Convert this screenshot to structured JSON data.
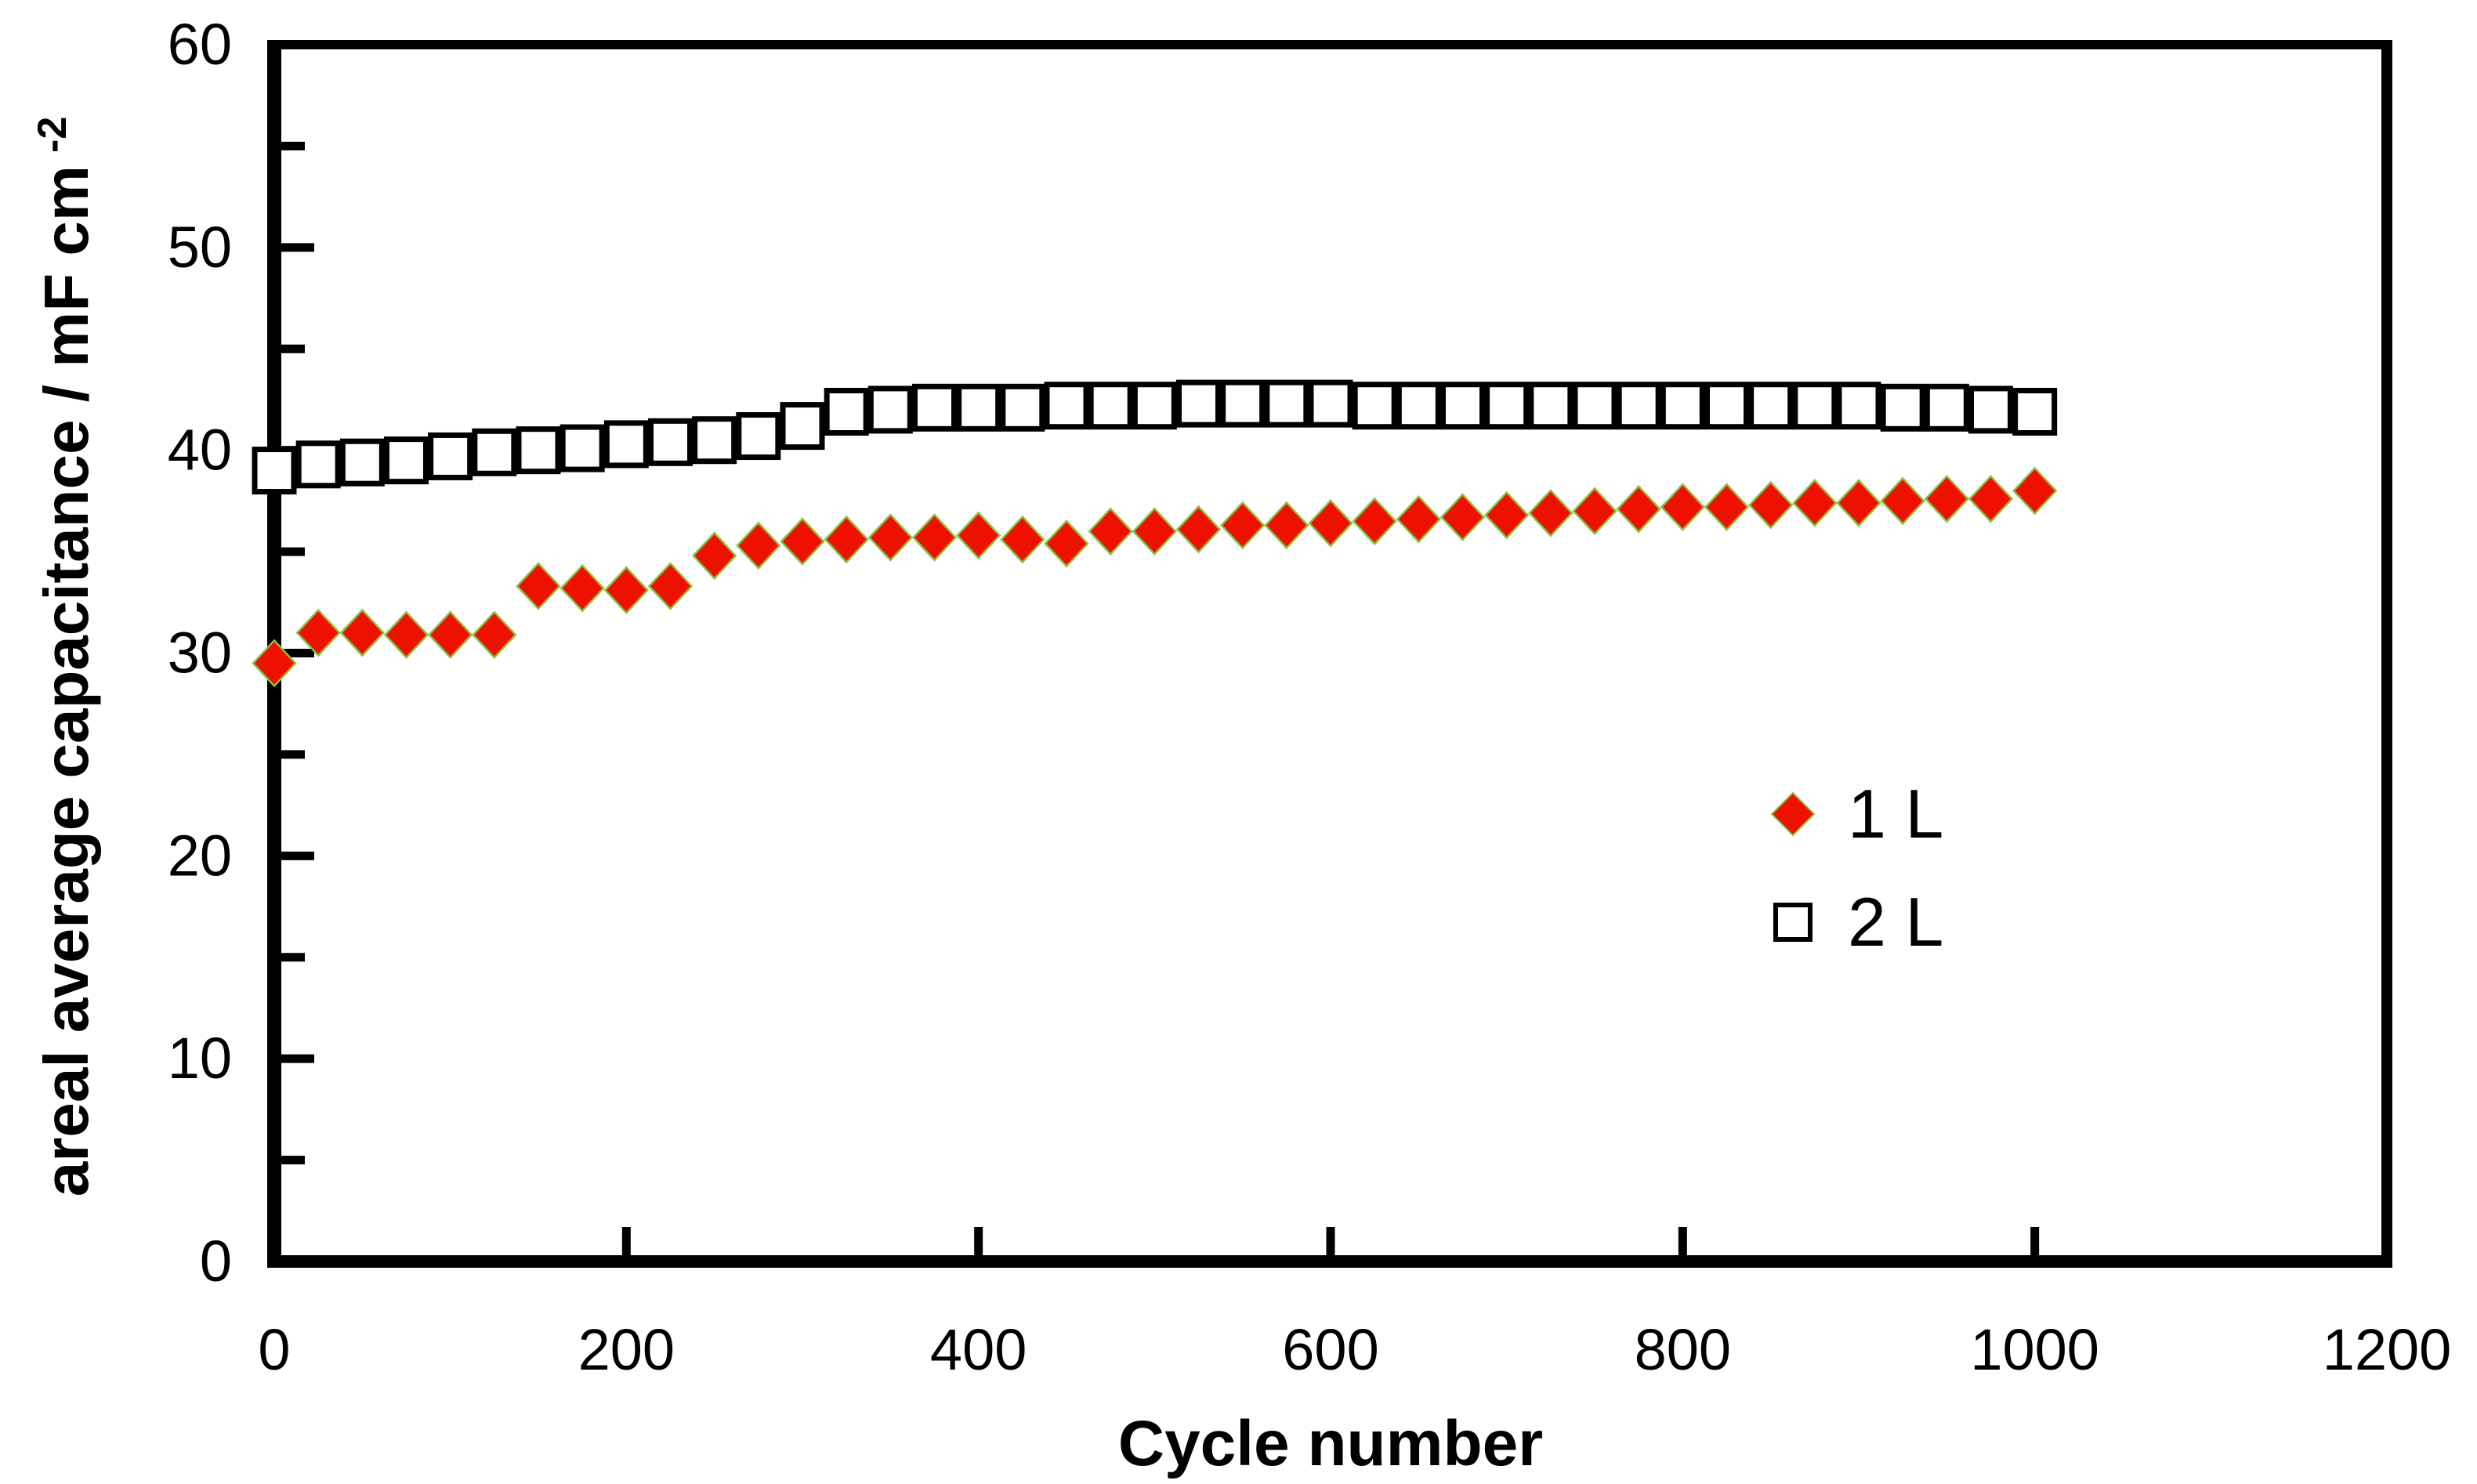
{
  "figure": {
    "background": "#ffffff",
    "axis_color": "#000000",
    "xlabel": "Cycle number",
    "ylabel_text": "areal average capacitance / mF cm",
    "ylabel_sup": "-2"
  },
  "chart_data": {
    "type": "scatter",
    "title": "",
    "xlabel": "Cycle number",
    "ylabel": "areal average capacitance / mF cm⁻²",
    "xlim": [
      0,
      1200
    ],
    "ylim": [
      0,
      60
    ],
    "x_ticks": [
      0,
      200,
      400,
      600,
      800,
      1000,
      1200
    ],
    "y_ticks": [
      0,
      10,
      20,
      30,
      40,
      50,
      60
    ],
    "y_minor_tick_step": 5,
    "grid": false,
    "legend_position": "inside-right-middle",
    "x": [
      0,
      25,
      50,
      75,
      100,
      125,
      150,
      175,
      200,
      225,
      250,
      275,
      300,
      325,
      350,
      375,
      400,
      425,
      450,
      475,
      500,
      525,
      550,
      575,
      600,
      625,
      650,
      675,
      700,
      725,
      750,
      775,
      800,
      825,
      850,
      875,
      900,
      925,
      950,
      975,
      1000
    ],
    "series": [
      {
        "name": "1 L",
        "marker": "diamond",
        "color": "#ee1000",
        "edge_color": "#8cbf42",
        "values": [
          29.5,
          31.0,
          31.0,
          30.9,
          30.9,
          30.9,
          33.3,
          33.2,
          33.1,
          33.3,
          34.8,
          35.3,
          35.5,
          35.6,
          35.7,
          35.7,
          35.8,
          35.6,
          35.4,
          36.0,
          36.0,
          36.1,
          36.3,
          36.3,
          36.4,
          36.5,
          36.6,
          36.7,
          36.8,
          36.9,
          37.0,
          37.1,
          37.2,
          37.2,
          37.3,
          37.4,
          37.4,
          37.5,
          37.6,
          37.6,
          38.0
        ]
      },
      {
        "name": "2 L",
        "marker": "square",
        "color": "#ffffff",
        "edge_color": "#000000",
        "values": [
          39.0,
          39.3,
          39.4,
          39.5,
          39.7,
          39.9,
          40.0,
          40.1,
          40.3,
          40.4,
          40.5,
          40.7,
          41.2,
          41.9,
          42.0,
          42.1,
          42.1,
          42.1,
          42.2,
          42.2,
          42.2,
          42.3,
          42.3,
          42.3,
          42.3,
          42.2,
          42.2,
          42.2,
          42.2,
          42.2,
          42.2,
          42.2,
          42.2,
          42.2,
          42.2,
          42.2,
          42.2,
          42.1,
          42.1,
          42.0,
          41.9
        ]
      }
    ]
  }
}
